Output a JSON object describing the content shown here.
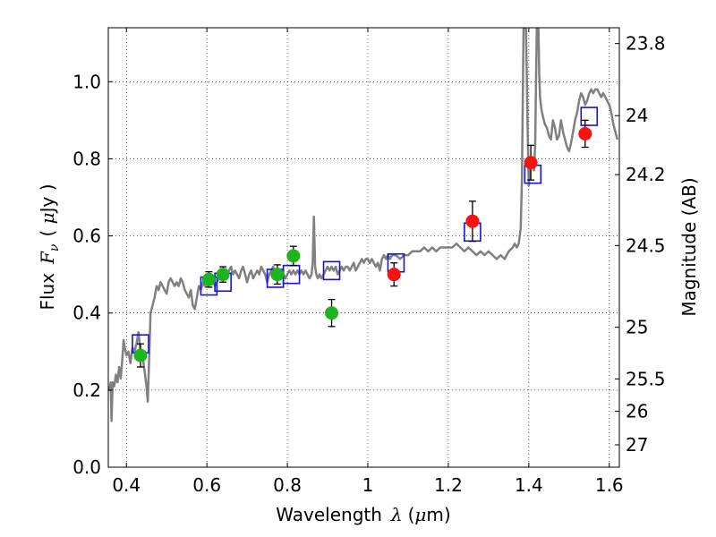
{
  "chart_data": {
    "type": "scatter",
    "xlabel": {
      "text": "Wavelength",
      "symbol": "λ",
      "unit_open": "(",
      "unit_mu": "μ",
      "unit_rest": "m)"
    },
    "ylabel": {
      "text": "Flux",
      "symbol": "F",
      "subscript": "ν",
      "unit_open": "( ",
      "unit_mu": "μ",
      "unit_rest": "Jy )"
    },
    "ylabel_right": "Magnitude (AB)",
    "xlim": [
      0.355,
      1.625
    ],
    "ylim": [
      0.0,
      1.14
    ],
    "grid": true,
    "x_ticks": [
      {
        "value": 0.4,
        "label": "0.4"
      },
      {
        "value": 0.6,
        "label": "0.6"
      },
      {
        "value": 0.8,
        "label": "0.8"
      },
      {
        "value": 1.0,
        "label": "1"
      },
      {
        "value": 1.2,
        "label": "1.2"
      },
      {
        "value": 1.4,
        "label": "1.4"
      },
      {
        "value": 1.6,
        "label": "1.6"
      }
    ],
    "y_ticks": [
      {
        "value": 0.0,
        "label": "0.0"
      },
      {
        "value": 0.2,
        "label": "0.2"
      },
      {
        "value": 0.4,
        "label": "0.4"
      },
      {
        "value": 0.6,
        "label": "0.6"
      },
      {
        "value": 0.8,
        "label": "0.8"
      },
      {
        "value": 1.0,
        "label": "1.0"
      }
    ],
    "right_ticks": [
      {
        "label": "23.8",
        "flux": 1.099
      },
      {
        "label": "24",
        "flux": 0.912
      },
      {
        "label": "24.2",
        "flux": 0.759
      },
      {
        "label": "24.5",
        "flux": 0.575
      },
      {
        "label": "25",
        "flux": 0.363
      },
      {
        "label": "25.5",
        "flux": 0.229
      },
      {
        "label": "26",
        "flux": 0.145
      },
      {
        "label": "27",
        "flux": 0.058
      }
    ],
    "colors": {
      "model": "#808080",
      "optical": "#1db41d",
      "nir": "#ff1010",
      "synthetic": "#1414d2",
      "error": "#000000"
    },
    "series": [
      {
        "kind": "model-spectrum",
        "points": [
          [
            0.355,
            0.21
          ],
          [
            0.358,
            0.2
          ],
          [
            0.361,
            0.22
          ],
          [
            0.363,
            0.12
          ],
          [
            0.366,
            0.22
          ],
          [
            0.37,
            0.21
          ],
          [
            0.374,
            0.24
          ],
          [
            0.378,
            0.22
          ],
          [
            0.382,
            0.26
          ],
          [
            0.386,
            0.23
          ],
          [
            0.39,
            0.28
          ],
          [
            0.393,
            0.33
          ],
          [
            0.396,
            0.31
          ],
          [
            0.4,
            0.29
          ],
          [
            0.405,
            0.3
          ],
          [
            0.41,
            0.27
          ],
          [
            0.415,
            0.31
          ],
          [
            0.42,
            0.3
          ],
          [
            0.425,
            0.32
          ],
          [
            0.43,
            0.35
          ],
          [
            0.435,
            0.3
          ],
          [
            0.44,
            0.29
          ],
          [
            0.445,
            0.25
          ],
          [
            0.45,
            0.21
          ],
          [
            0.453,
            0.17
          ],
          [
            0.457,
            0.3
          ],
          [
            0.46,
            0.4
          ],
          [
            0.465,
            0.42
          ],
          [
            0.47,
            0.44
          ],
          [
            0.475,
            0.47
          ],
          [
            0.48,
            0.46
          ],
          [
            0.485,
            0.48
          ],
          [
            0.49,
            0.47
          ],
          [
            0.495,
            0.46
          ],
          [
            0.5,
            0.45
          ],
          [
            0.505,
            0.48
          ],
          [
            0.51,
            0.49
          ],
          [
            0.515,
            0.48
          ],
          [
            0.52,
            0.47
          ],
          [
            0.525,
            0.48
          ],
          [
            0.53,
            0.47
          ],
          [
            0.535,
            0.49
          ],
          [
            0.54,
            0.48
          ],
          [
            0.545,
            0.46
          ],
          [
            0.55,
            0.45
          ],
          [
            0.555,
            0.44
          ],
          [
            0.56,
            0.46
          ],
          [
            0.565,
            0.42
          ],
          [
            0.57,
            0.41
          ],
          [
            0.575,
            0.44
          ],
          [
            0.58,
            0.47
          ],
          [
            0.585,
            0.46
          ],
          [
            0.59,
            0.48
          ],
          [
            0.595,
            0.47
          ],
          [
            0.6,
            0.49
          ],
          [
            0.605,
            0.48
          ],
          [
            0.61,
            0.5
          ],
          [
            0.615,
            0.49
          ],
          [
            0.62,
            0.47
          ],
          [
            0.625,
            0.48
          ],
          [
            0.63,
            0.49
          ],
          [
            0.635,
            0.5
          ],
          [
            0.64,
            0.51
          ],
          [
            0.645,
            0.49
          ],
          [
            0.65,
            0.5
          ],
          [
            0.655,
            0.51
          ],
          [
            0.66,
            0.52
          ],
          [
            0.665,
            0.5
          ],
          [
            0.67,
            0.51
          ],
          [
            0.675,
            0.5
          ],
          [
            0.68,
            0.49
          ],
          [
            0.685,
            0.51
          ],
          [
            0.69,
            0.52
          ],
          [
            0.695,
            0.5
          ],
          [
            0.7,
            0.48
          ],
          [
            0.705,
            0.5
          ],
          [
            0.71,
            0.51
          ],
          [
            0.715,
            0.49
          ],
          [
            0.72,
            0.5
          ],
          [
            0.725,
            0.51
          ],
          [
            0.73,
            0.5
          ],
          [
            0.735,
            0.52
          ],
          [
            0.74,
            0.51
          ],
          [
            0.745,
            0.5
          ],
          [
            0.75,
            0.48
          ],
          [
            0.755,
            0.5
          ],
          [
            0.76,
            0.51
          ],
          [
            0.765,
            0.52
          ],
          [
            0.77,
            0.5
          ],
          [
            0.775,
            0.51
          ],
          [
            0.78,
            0.5
          ],
          [
            0.785,
            0.51
          ],
          [
            0.79,
            0.5
          ],
          [
            0.795,
            0.49
          ],
          [
            0.8,
            0.5
          ],
          [
            0.805,
            0.51
          ],
          [
            0.81,
            0.5
          ],
          [
            0.815,
            0.51
          ],
          [
            0.82,
            0.5
          ],
          [
            0.825,
            0.51
          ],
          [
            0.83,
            0.5
          ],
          [
            0.835,
            0.51
          ],
          [
            0.84,
            0.5
          ],
          [
            0.845,
            0.51
          ],
          [
            0.85,
            0.5
          ],
          [
            0.855,
            0.49
          ],
          [
            0.86,
            0.5
          ],
          [
            0.863,
            0.53
          ],
          [
            0.866,
            0.65
          ],
          [
            0.869,
            0.52
          ],
          [
            0.872,
            0.5
          ],
          [
            0.876,
            0.49
          ],
          [
            0.88,
            0.5
          ],
          [
            0.885,
            0.49
          ],
          [
            0.89,
            0.5
          ],
          [
            0.895,
            0.51
          ],
          [
            0.9,
            0.52
          ],
          [
            0.905,
            0.51
          ],
          [
            0.91,
            0.52
          ],
          [
            0.915,
            0.51
          ],
          [
            0.92,
            0.52
          ],
          [
            0.925,
            0.5
          ],
          [
            0.93,
            0.51
          ],
          [
            0.935,
            0.52
          ],
          [
            0.94,
            0.51
          ],
          [
            0.945,
            0.52
          ],
          [
            0.95,
            0.52
          ],
          [
            0.955,
            0.51
          ],
          [
            0.96,
            0.52
          ],
          [
            0.965,
            0.53
          ],
          [
            0.97,
            0.51
          ],
          [
            0.975,
            0.52
          ],
          [
            0.98,
            0.53
          ],
          [
            0.985,
            0.54
          ],
          [
            0.99,
            0.53
          ],
          [
            0.995,
            0.54
          ],
          [
            1.0,
            0.54
          ],
          [
            1.005,
            0.53
          ],
          [
            1.01,
            0.54
          ],
          [
            1.015,
            0.53
          ],
          [
            1.02,
            0.52
          ],
          [
            1.025,
            0.53
          ],
          [
            1.03,
            0.51
          ],
          [
            1.035,
            0.54
          ],
          [
            1.04,
            0.55
          ],
          [
            1.045,
            0.54
          ],
          [
            1.05,
            0.55
          ],
          [
            1.055,
            0.54
          ],
          [
            1.06,
            0.55
          ],
          [
            1.07,
            0.55
          ],
          [
            1.08,
            0.54
          ],
          [
            1.09,
            0.55
          ],
          [
            1.1,
            0.55
          ],
          [
            1.11,
            0.56
          ],
          [
            1.12,
            0.56
          ],
          [
            1.13,
            0.56
          ],
          [
            1.14,
            0.57
          ],
          [
            1.15,
            0.56
          ],
          [
            1.16,
            0.57
          ],
          [
            1.17,
            0.56
          ],
          [
            1.18,
            0.57
          ],
          [
            1.19,
            0.57
          ],
          [
            1.2,
            0.57
          ],
          [
            1.21,
            0.57
          ],
          [
            1.22,
            0.58
          ],
          [
            1.23,
            0.57
          ],
          [
            1.24,
            0.56
          ],
          [
            1.25,
            0.57
          ],
          [
            1.26,
            0.56
          ],
          [
            1.27,
            0.55
          ],
          [
            1.28,
            0.56
          ],
          [
            1.29,
            0.55
          ],
          [
            1.3,
            0.56
          ],
          [
            1.31,
            0.55
          ],
          [
            1.32,
            0.54
          ],
          [
            1.33,
            0.55
          ],
          [
            1.34,
            0.54
          ],
          [
            1.35,
            0.56
          ],
          [
            1.36,
            0.57
          ],
          [
            1.365,
            0.58
          ],
          [
            1.37,
            0.57
          ],
          [
            1.375,
            0.58
          ],
          [
            1.38,
            0.62
          ],
          [
            1.383,
            0.75
          ],
          [
            1.385,
            0.95
          ],
          [
            1.387,
            1.14
          ],
          [
            1.393,
            1.14
          ],
          [
            1.395,
            1.02
          ],
          [
            1.397,
            0.88
          ],
          [
            1.4,
            0.73
          ],
          [
            1.403,
            0.78
          ],
          [
            1.408,
            0.8
          ],
          [
            1.413,
            0.77
          ],
          [
            1.416,
            0.84
          ],
          [
            1.418,
            1.0
          ],
          [
            1.42,
            1.14
          ],
          [
            1.424,
            1.14
          ],
          [
            1.426,
            1.02
          ],
          [
            1.428,
            0.96
          ],
          [
            1.431,
            0.93
          ],
          [
            1.435,
            0.91
          ],
          [
            1.44,
            0.89
          ],
          [
            1.445,
            0.88
          ],
          [
            1.45,
            0.86
          ],
          [
            1.455,
            0.85
          ],
          [
            1.46,
            0.9
          ],
          [
            1.465,
            0.88
          ],
          [
            1.47,
            0.85
          ],
          [
            1.475,
            0.86
          ],
          [
            1.48,
            0.9
          ],
          [
            1.485,
            0.87
          ],
          [
            1.49,
            0.85
          ],
          [
            1.495,
            0.83
          ],
          [
            1.5,
            0.82
          ],
          [
            1.505,
            0.84
          ],
          [
            1.51,
            0.87
          ],
          [
            1.515,
            0.9
          ],
          [
            1.52,
            0.92
          ],
          [
            1.525,
            0.95
          ],
          [
            1.53,
            0.97
          ],
          [
            1.535,
            0.96
          ],
          [
            1.54,
            0.94
          ],
          [
            1.545,
            0.95
          ],
          [
            1.55,
            0.97
          ],
          [
            1.555,
            0.98
          ],
          [
            1.56,
            0.97
          ],
          [
            1.565,
            0.98
          ],
          [
            1.57,
            0.98
          ],
          [
            1.575,
            0.97
          ],
          [
            1.58,
            0.96
          ],
          [
            1.585,
            0.97
          ],
          [
            1.59,
            0.96
          ],
          [
            1.595,
            0.95
          ],
          [
            1.6,
            0.94
          ],
          [
            1.605,
            0.92
          ],
          [
            1.61,
            0.89
          ],
          [
            1.615,
            0.87
          ],
          [
            1.62,
            0.85
          ]
        ]
      },
      {
        "kind": "synthetic-photometry",
        "points": [
          [
            0.435,
            0.32
          ],
          [
            0.605,
            0.47
          ],
          [
            0.64,
            0.48
          ],
          [
            0.77,
            0.49
          ],
          [
            0.81,
            0.5
          ],
          [
            0.91,
            0.51
          ],
          [
            1.07,
            0.53
          ],
          [
            1.26,
            0.61
          ],
          [
            1.41,
            0.76
          ],
          [
            1.55,
            0.91
          ]
        ]
      },
      {
        "kind": "optical-photometry",
        "points": [
          {
            "x": 0.435,
            "y": 0.29,
            "err": 0.03
          },
          {
            "x": 0.605,
            "y": 0.487,
            "err": 0.02
          },
          {
            "x": 0.64,
            "y": 0.5,
            "err": 0.02
          },
          {
            "x": 0.775,
            "y": 0.5,
            "err": 0.025
          },
          {
            "x": 0.815,
            "y": 0.548,
            "err": 0.025
          },
          {
            "x": 0.91,
            "y": 0.4,
            "err": 0.035
          }
        ]
      },
      {
        "kind": "nir-photometry",
        "points": [
          {
            "x": 1.065,
            "y": 0.5,
            "err": 0.03
          },
          {
            "x": 1.26,
            "y": 0.638,
            "err": 0.052
          },
          {
            "x": 1.405,
            "y": 0.79,
            "err": 0.045
          },
          {
            "x": 1.54,
            "y": 0.865,
            "err": 0.035
          }
        ]
      }
    ]
  }
}
